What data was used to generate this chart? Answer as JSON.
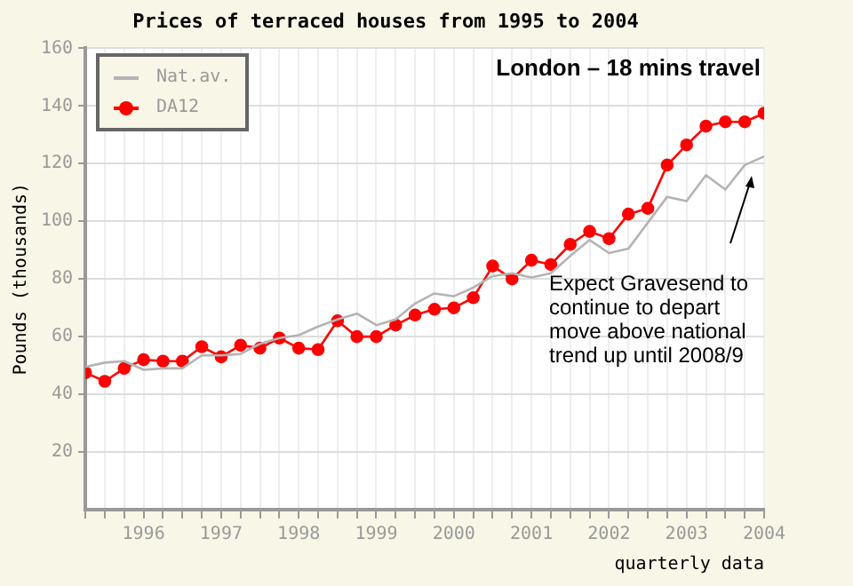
{
  "chart_data": {
    "type": "line",
    "title": "Prices of terraced houses from 1995 to 2004",
    "xlabel": "quarterly data",
    "ylabel": "Pounds (thousands)",
    "x": [
      1995.25,
      1995.5,
      1995.75,
      1996,
      1996.25,
      1996.5,
      1996.75,
      1997,
      1997.25,
      1997.5,
      1997.75,
      1998,
      1998.25,
      1998.5,
      1998.75,
      1999,
      1999.25,
      1999.5,
      1999.75,
      2000,
      2000.25,
      2000.5,
      2000.75,
      2001,
      2001.25,
      2001.5,
      2001.75,
      2002,
      2002.25,
      2002.5,
      2002.75,
      2003,
      2003.25,
      2003.5,
      2003.75,
      2004
    ],
    "series": [
      {
        "name": "Nat.av.",
        "color": "#b4b4b4",
        "marker": "none",
        "values": [
          49.5,
          51,
          51.5,
          48.5,
          49,
          49,
          53.5,
          53.5,
          54,
          57.5,
          59.5,
          60.5,
          63.5,
          66,
          68,
          64,
          66,
          71.5,
          75,
          74,
          77,
          81,
          82,
          80.5,
          82,
          88,
          93.5,
          89,
          90.5,
          99.5,
          108.5,
          107,
          116,
          111,
          119.5,
          122.5
        ]
      },
      {
        "name": "DA12",
        "color": "#ff0000",
        "marker": "circle",
        "values": [
          47.5,
          44.5,
          49,
          52,
          51.5,
          51.5,
          56.5,
          53,
          57,
          56,
          59.5,
          56,
          55.5,
          65.5,
          60,
          60,
          64,
          67.5,
          69.5,
          70,
          73.5,
          84.5,
          80,
          86.5,
          85,
          92,
          96.5,
          94,
          102.5,
          104.5,
          119.5,
          126.5,
          133,
          134.5,
          134.5,
          137.5
        ]
      }
    ],
    "xlim": [
      1995.25,
      2004
    ],
    "xticks": [
      {
        "value": 1995.25,
        "label": null
      },
      {
        "value": 1995.5,
        "label": null
      },
      {
        "value": 1995.75,
        "label": null
      },
      1996,
      {
        "value": 1996.25,
        "label": null
      },
      {
        "value": 1996.5,
        "label": null
      },
      {
        "value": 1996.75,
        "label": null
      },
      1997,
      {
        "value": 1997.25,
        "label": null
      },
      {
        "value": 1997.5,
        "label": null
      },
      {
        "value": 1997.75,
        "label": null
      },
      1998,
      {
        "value": 1998.25,
        "label": null
      },
      {
        "value": 1998.5,
        "label": null
      },
      {
        "value": 1998.75,
        "label": null
      },
      1999,
      {
        "value": 1999.25,
        "label": null
      },
      {
        "value": 1999.5,
        "label": null
      },
      {
        "value": 1999.75,
        "label": null
      },
      2000,
      {
        "value": 2000.25,
        "label": null
      },
      {
        "value": 2000.5,
        "label": null
      },
      {
        "value": 2000.75,
        "label": null
      },
      2001,
      {
        "value": 2001.25,
        "label": null
      },
      {
        "value": 2001.5,
        "label": null
      },
      {
        "value": 2001.75,
        "label": null
      },
      2002,
      {
        "value": 2002.25,
        "label": null
      },
      {
        "value": 2002.5,
        "label": null
      },
      {
        "value": 2002.75,
        "label": null
      },
      2003,
      {
        "value": 2003.25,
        "label": null
      },
      {
        "value": 2003.5,
        "label": null
      },
      {
        "value": 2003.75,
        "label": null
      },
      2004
    ],
    "ylim": [
      0,
      160
    ],
    "yticks": [
      20,
      40,
      60,
      80,
      100,
      120,
      140,
      160
    ],
    "grid": true,
    "legend": "top left",
    "annotations": [
      "London – 18 mins travel",
      "Expect Gravesend to continue to depart move above national trend up until 2008/9"
    ]
  }
}
